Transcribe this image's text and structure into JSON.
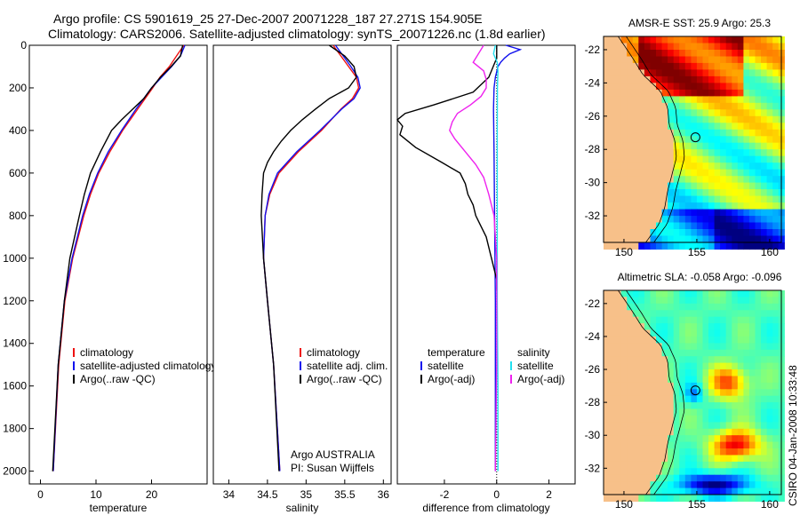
{
  "header": {
    "line1": "Argo profile: CS 5901619_25 27-Dec-2007 20071228_187 27.271S 154.905E",
    "line2": "Climatology: CARS2006. Satellite-adjusted climatology: synTS_20071226.nc (1.8d earlier)"
  },
  "credit": "CSIRO 04-Jan-2008 10:33:48",
  "colors": {
    "climatology": "#ee1111",
    "satellite": "#1111ee",
    "argo": "#000000",
    "sal_satellite": "#22e0f0",
    "sal_argo": "#ee22ee",
    "land": "#f7c089"
  },
  "chart_data": [
    {
      "type": "line",
      "id": "temperature-profile",
      "xlabel": "temperature",
      "ylabel": "",
      "xlim": [
        -2,
        30
      ],
      "ylim": [
        2060,
        0
      ],
      "xticks": [
        0,
        10,
        20
      ],
      "xticklabels": [
        "0",
        "10",
        "20"
      ],
      "yticks": [
        0,
        200,
        400,
        600,
        800,
        1000,
        1200,
        1400,
        1600,
        1800,
        2000
      ],
      "yticklabels": [
        "0",
        "200",
        "400",
        "600",
        "800",
        "1000",
        "1200",
        "1400",
        "1600",
        "1800",
        "2000"
      ],
      "legend": [
        "climatology",
        "satellite-adjusted climatology",
        "Argo(..raw -QC)"
      ],
      "legend_position": "lower-right",
      "series": [
        {
          "name": "climatology",
          "color": "#ee1111",
          "depth": [
            0,
            50,
            100,
            150,
            200,
            300,
            400,
            500,
            600,
            700,
            800,
            1000,
            1200,
            1500,
            2000
          ],
          "values": [
            25.8,
            24.5,
            23.2,
            21.5,
            20.2,
            17.5,
            14.8,
            12.5,
            10.5,
            9.0,
            7.8,
            5.8,
            4.4,
            3.3,
            2.3
          ]
        },
        {
          "name": "satellite-adjusted climatology",
          "color": "#1111ee",
          "depth": [
            0,
            50,
            100,
            150,
            200,
            300,
            400,
            500,
            600,
            700,
            800,
            1000,
            1200,
            1500,
            2000
          ],
          "values": [
            26.0,
            25.2,
            23.6,
            21.8,
            20.0,
            17.2,
            14.6,
            12.2,
            10.3,
            8.8,
            7.6,
            5.7,
            4.3,
            3.2,
            2.3
          ]
        },
        {
          "name": "Argo(..raw -QC)",
          "color": "#000000",
          "depth": [
            0,
            50,
            100,
            150,
            200,
            250,
            300,
            350,
            400,
            500,
            600,
            700,
            800,
            1000,
            1200,
            1500,
            2000
          ],
          "values": [
            25.6,
            25.2,
            23.5,
            21.6,
            20.0,
            18.6,
            16.6,
            14.6,
            12.8,
            10.8,
            9.0,
            7.9,
            7.0,
            5.3,
            4.3,
            3.2,
            2.2
          ]
        }
      ]
    },
    {
      "type": "line",
      "id": "salinity-profile",
      "xlabel": "salinity",
      "ylabel": "",
      "xlim": [
        33.8,
        36.1
      ],
      "ylim": [
        2060,
        0
      ],
      "xticks": [
        34,
        34.5,
        35,
        35.5,
        36
      ],
      "xticklabels": [
        "34",
        "34.5",
        "35",
        "35.5",
        "36"
      ],
      "yticks": [],
      "legend": [
        "climatology",
        "satellite adj. clim.",
        "Argo(..raw -QC)"
      ],
      "legend_position": "lower-right",
      "annotation": [
        "Argo AUSTRALIA",
        "PI: Susan Wijffels"
      ],
      "series": [
        {
          "name": "climatology",
          "color": "#ee1111",
          "depth": [
            0,
            50,
            100,
            150,
            200,
            250,
            300,
            400,
            500,
            600,
            700,
            800,
            1000,
            1200,
            1500,
            2000
          ],
          "values": [
            35.35,
            35.45,
            35.55,
            35.65,
            35.68,
            35.6,
            35.45,
            35.2,
            34.9,
            34.65,
            34.53,
            34.47,
            34.45,
            34.5,
            34.58,
            34.66
          ]
        },
        {
          "name": "satellite adj. clim.",
          "color": "#1111ee",
          "depth": [
            0,
            50,
            100,
            150,
            200,
            250,
            300,
            400,
            500,
            600,
            700,
            800,
            1000,
            1200,
            1500,
            2000
          ],
          "values": [
            35.38,
            35.48,
            35.58,
            35.67,
            35.7,
            35.62,
            35.46,
            35.18,
            34.88,
            34.63,
            34.52,
            34.47,
            34.45,
            34.5,
            34.58,
            34.66
          ]
        },
        {
          "name": "Argo(..raw -QC)",
          "color": "#000000",
          "depth": [
            0,
            50,
            100,
            150,
            200,
            250,
            300,
            350,
            400,
            450,
            500,
            550,
            600,
            700,
            800,
            1000,
            1200,
            1500,
            2000
          ],
          "values": [
            35.3,
            35.5,
            35.62,
            35.65,
            35.55,
            35.3,
            35.12,
            34.95,
            34.8,
            34.68,
            34.58,
            34.5,
            34.45,
            34.43,
            34.42,
            34.45,
            34.5,
            34.58,
            34.65
          ]
        }
      ]
    },
    {
      "type": "line",
      "id": "difference-profile",
      "xlabel": "difference from climatology",
      "ylabel": "",
      "xlim": [
        -3.8,
        3.0
      ],
      "ylim": [
        2060,
        0
      ],
      "xticks": [
        -2,
        0,
        2
      ],
      "xticklabels": [
        "-2",
        "0",
        "2"
      ],
      "yticks": [],
      "legend_titles": [
        "temperature",
        "salinity"
      ],
      "legend": [
        "satellite",
        "Argo(-adj)",
        "satellite",
        "Argo(-adj)"
      ],
      "legend_position": "lower-center",
      "series": [
        {
          "name": "temperature satellite",
          "color": "#1111ee",
          "depth": [
            0,
            20,
            40,
            60,
            80,
            100,
            150,
            200,
            300,
            500,
            800,
            1200,
            1500,
            2000
          ],
          "values": [
            0.35,
            0.9,
            0.5,
            0.3,
            0.15,
            0.05,
            -0.05,
            -0.1,
            -0.12,
            -0.1,
            -0.08,
            -0.05,
            -0.05,
            -0.05
          ]
        },
        {
          "name": "temperature Argo(-adj)",
          "color": "#000000",
          "depth": [
            0,
            60,
            150,
            220,
            280,
            320,
            350,
            380,
            420,
            480,
            550,
            600,
            650,
            700,
            750,
            800,
            900,
            1000,
            1100,
            1150
          ],
          "values": [
            0.0,
            0.0,
            -0.3,
            -0.9,
            -2.4,
            -3.5,
            -3.8,
            -3.6,
            -3.7,
            -3.1,
            -2.1,
            -1.4,
            -1.2,
            -1.1,
            -0.9,
            -0.8,
            -0.4,
            -0.2,
            0.0,
            0.0
          ]
        },
        {
          "name": "salinity satellite",
          "color": "#22e0f0",
          "depth": [
            0,
            40,
            80,
            120,
            200,
            400,
            800,
            1200,
            1600,
            2000
          ],
          "values": [
            -0.05,
            -0.12,
            0.02,
            0.05,
            0.03,
            0.02,
            0.02,
            0.02,
            0.05,
            0.05
          ]
        },
        {
          "name": "salinity Argo(-adj)",
          "color": "#ee22ee",
          "depth": [
            0,
            40,
            80,
            120,
            160,
            200,
            240,
            280,
            320,
            360,
            400,
            440,
            500,
            560,
            620,
            700,
            800,
            1000,
            1200,
            1500,
            2000
          ],
          "values": [
            -0.5,
            -0.7,
            -0.9,
            -0.5,
            -0.4,
            -0.4,
            -0.6,
            -1.0,
            -1.5,
            -1.7,
            -1.8,
            -1.6,
            -1.2,
            -0.8,
            -0.5,
            -0.3,
            -0.1,
            0.0,
            0.0,
            0.0,
            -0.05
          ]
        }
      ]
    },
    {
      "type": "heatmap",
      "id": "amsre-sst-map",
      "title": "AMSR-E SST: 25.9 Argo: 25.3",
      "xlim": [
        148.6,
        160.8
      ],
      "ylim": [
        -33.6,
        -21.2
      ],
      "xticks": [
        150,
        155,
        160
      ],
      "xticklabels": [
        "150",
        "155",
        "160"
      ],
      "yticks": [
        -22,
        -24,
        -26,
        -28,
        -30,
        -32
      ],
      "yticklabels": [
        "-22",
        "-24",
        "-26",
        "-28",
        "-30",
        "-32"
      ],
      "marker": {
        "lon": 154.905,
        "lat": -27.271
      },
      "colorscale": "jet"
    },
    {
      "type": "heatmap",
      "id": "altimetric-sla-map",
      "title": "Altimetric SLA: -0.058 Argo: -0.096",
      "xlim": [
        148.6,
        160.8
      ],
      "ylim": [
        -33.6,
        -21.2
      ],
      "xticks": [
        150,
        155,
        160
      ],
      "xticklabels": [
        "150",
        "155",
        "160"
      ],
      "yticks": [
        -22,
        -24,
        -26,
        -28,
        -30,
        -32
      ],
      "yticklabels": [
        "-22",
        "-24",
        "-26",
        "-28",
        "-30",
        "-32"
      ],
      "marker": {
        "lon": 154.905,
        "lat": -27.271
      },
      "colorscale": "jet"
    }
  ]
}
